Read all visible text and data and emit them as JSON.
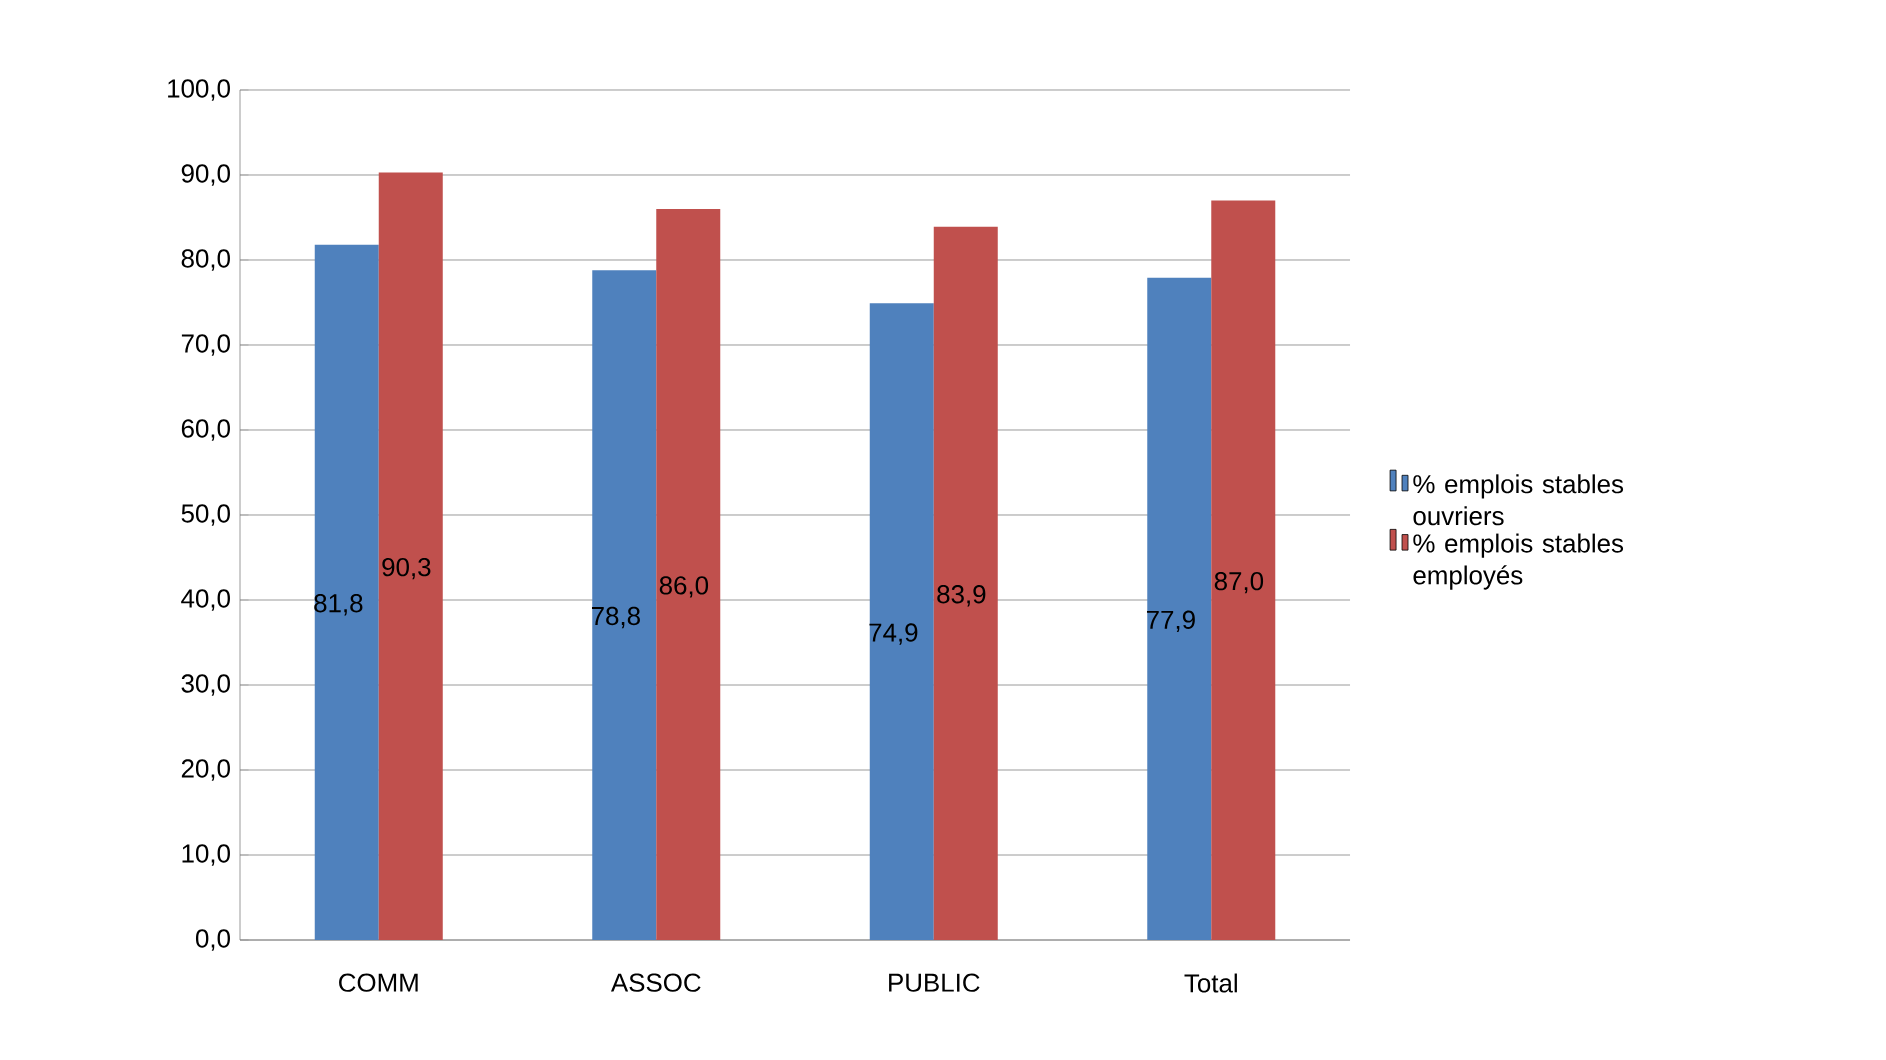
{
  "chart_data": {
    "type": "bar",
    "categories": [
      "COMM",
      "ASSOC",
      "PUBLIC",
      "Total"
    ],
    "series": [
      {
        "name": "% emplois stables ouvriers",
        "color": "#4f81bd",
        "values": [
          81.8,
          78.8,
          74.9,
          77.9
        ],
        "value_labels": [
          "81,8",
          "78,8",
          "74,9",
          "77,9"
        ]
      },
      {
        "name": "% emplois stables employés",
        "color": "#c0504d",
        "values": [
          90.3,
          86.0,
          83.9,
          87.0
        ],
        "value_labels": [
          "90,3",
          "86,0",
          "83,9",
          "87,0"
        ]
      }
    ],
    "ylim": [
      0,
      100
    ],
    "yticks": [
      {
        "value": 0,
        "label": "0,0"
      },
      {
        "value": 10,
        "label": "10,0"
      },
      {
        "value": 20,
        "label": "20,0"
      },
      {
        "value": 30,
        "label": "30,0"
      },
      {
        "value": 40,
        "label": "40,0"
      },
      {
        "value": 50,
        "label": "50,0"
      },
      {
        "value": 60,
        "label": "60,0"
      },
      {
        "value": 70,
        "label": "70,0"
      },
      {
        "value": 80,
        "label": "80,0"
      },
      {
        "value": 90,
        "label": "90,0"
      },
      {
        "value": 100,
        "label": "100,0"
      }
    ],
    "grid": "y",
    "legend": "right"
  }
}
